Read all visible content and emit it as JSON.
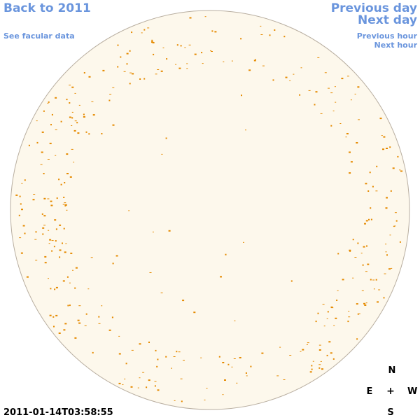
{
  "nav": {
    "back": "Back to 2011",
    "facular": "See facular data",
    "prev_day": "Previous day",
    "next_day": "Next day",
    "prev_hour": "Previous hour",
    "next_hour": "Next hour"
  },
  "timestamp": "2011-01-14T03:58:55",
  "compass": {
    "n": "N",
    "e": "E",
    "center": "+",
    "w": "W",
    "s": "S"
  },
  "colors": {
    "link": "#6a95dd",
    "disk_fill": "#fdf8ec",
    "disk_edge": "#b8aea0",
    "facula": "#e58a00"
  }
}
